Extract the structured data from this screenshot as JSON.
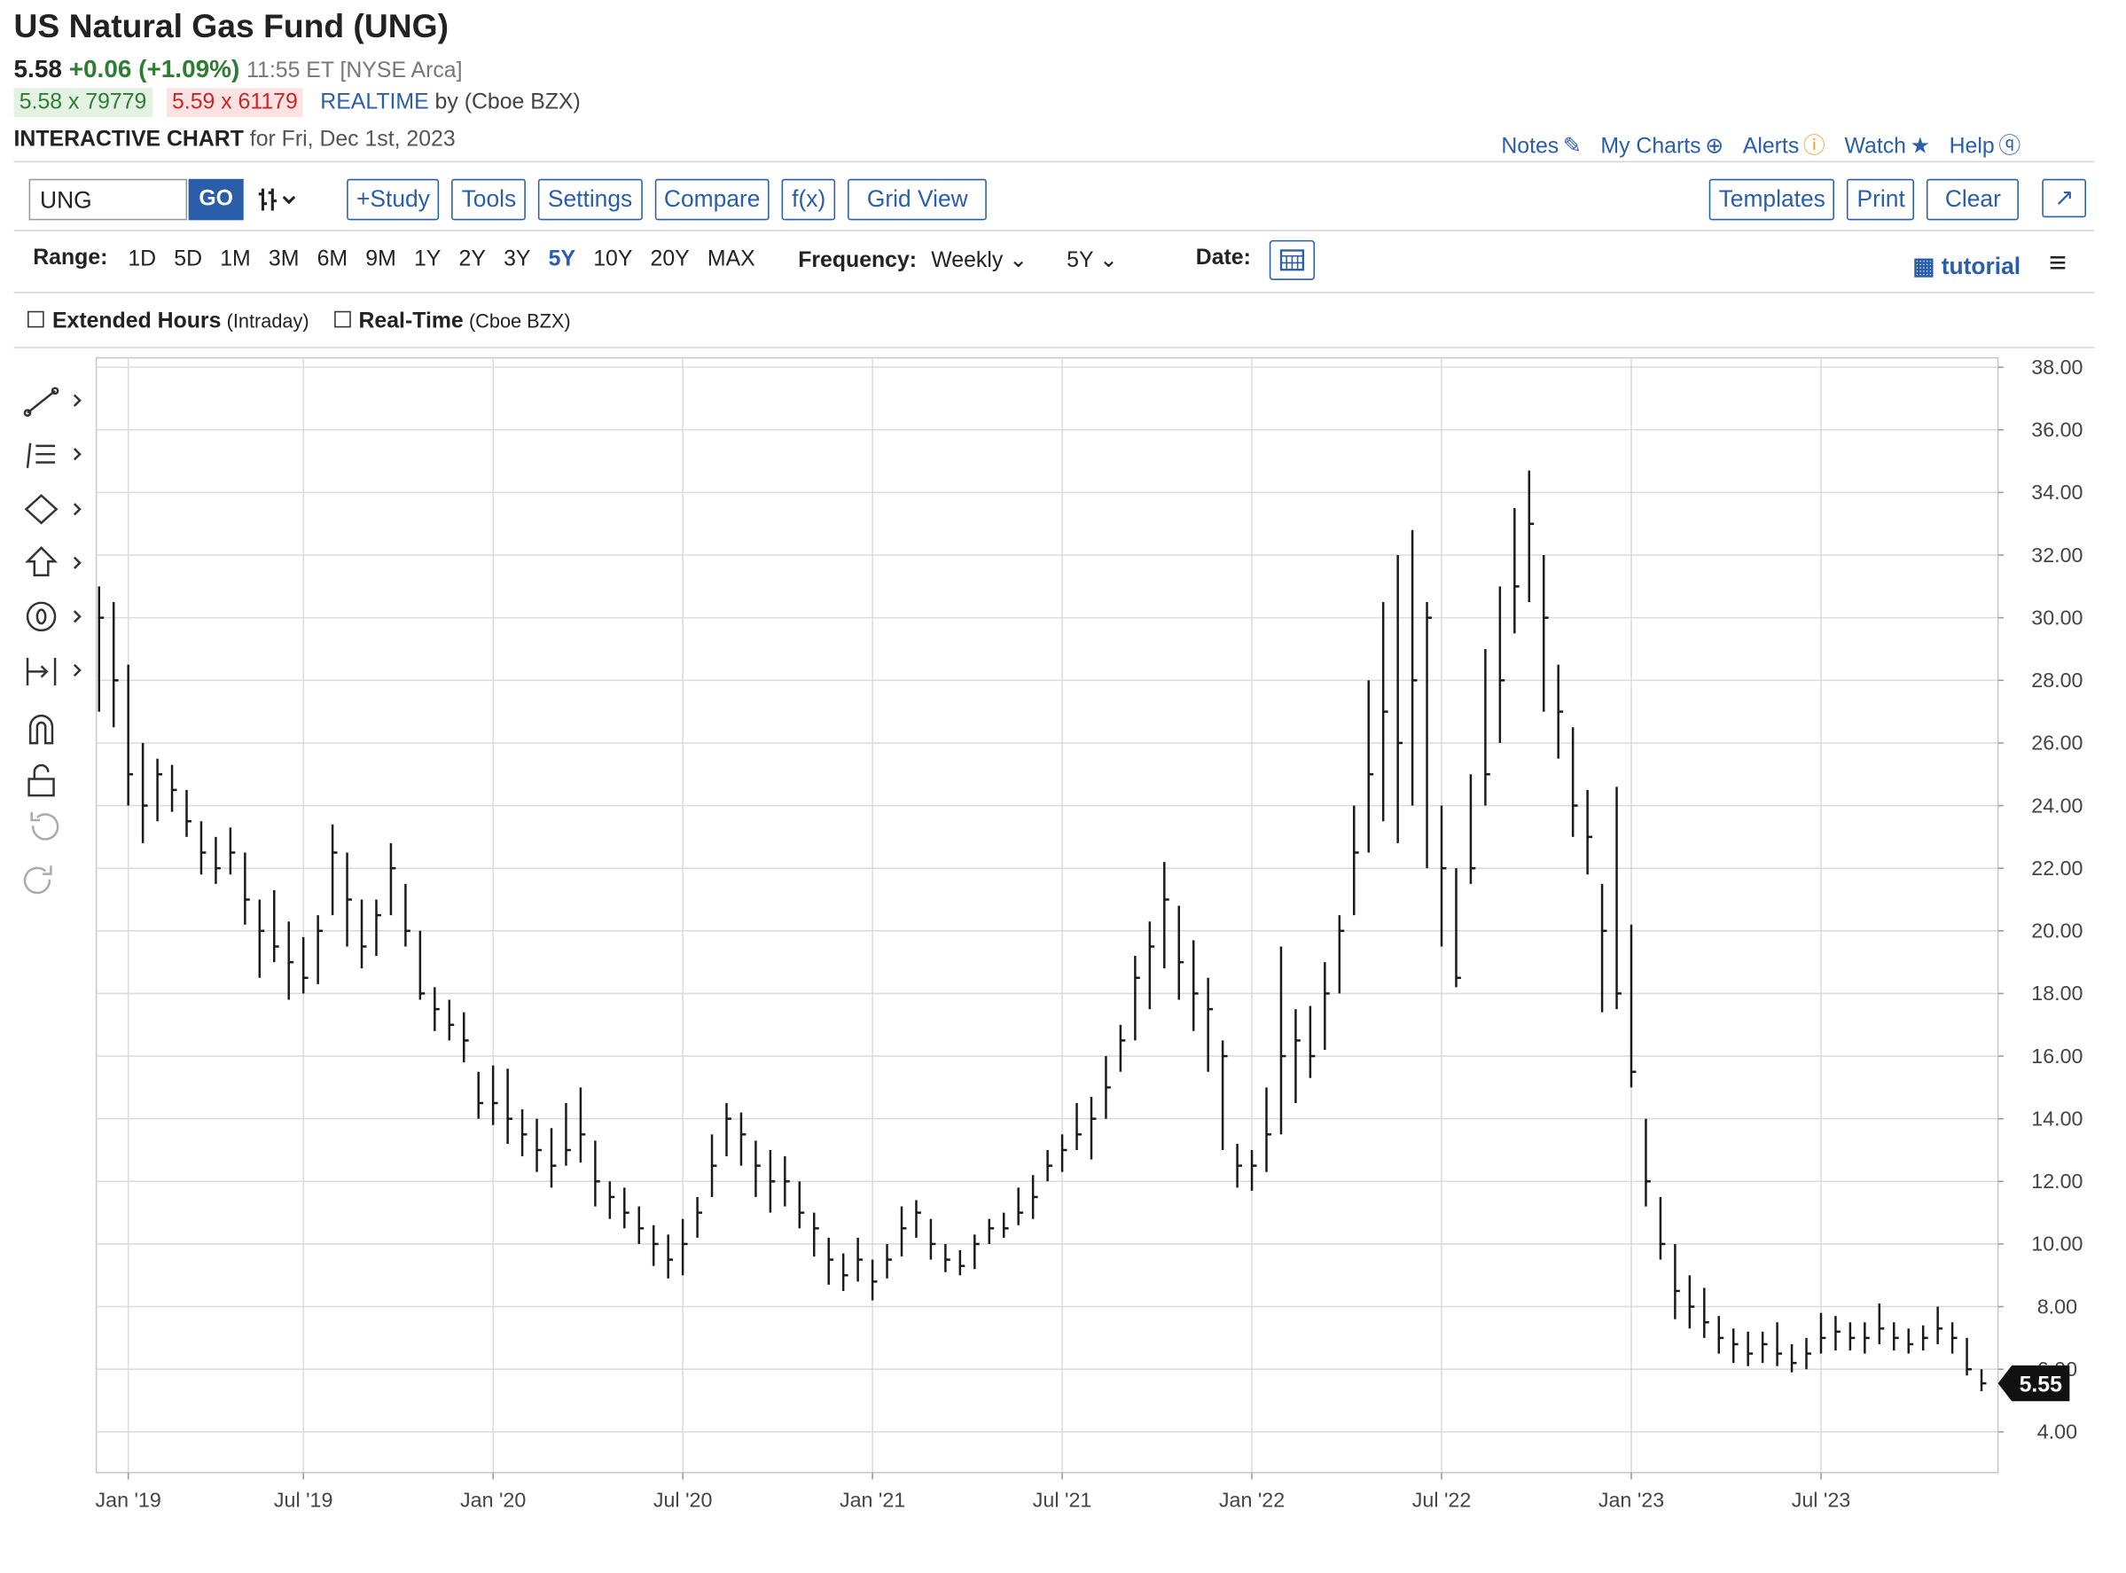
{
  "header": {
    "title": "US Natural Gas Fund (UNG)",
    "last": "5.58",
    "change": "+0.06 (+1.09%)",
    "time": "11:55 ET [NYSE Arca]",
    "bid": "5.58 x 79779",
    "ask": "5.59 x 61179",
    "realtime": "REALTIME",
    "realtime_source": "by (Cboe BZX)",
    "chart_label": "INTERACTIVE CHART",
    "chart_date": "for Fri, Dec 1st, 2023"
  },
  "links": [
    "Notes",
    "My Charts",
    "Alerts",
    "Watch",
    "Help"
  ],
  "toolbar": {
    "symbol": "UNG",
    "go": "GO",
    "buttons": [
      "+Study",
      "Tools",
      "Settings",
      "Compare",
      "f(x)",
      "Grid View"
    ],
    "right_buttons": [
      "Templates",
      "Print",
      "Clear"
    ]
  },
  "range": {
    "label": "Range:",
    "options": [
      "1D",
      "5D",
      "1M",
      "3M",
      "6M",
      "9M",
      "1Y",
      "2Y",
      "3Y",
      "5Y",
      "10Y",
      "20Y",
      "MAX"
    ],
    "selected_index": 9
  },
  "frequency": {
    "label": "Frequency:",
    "value": "Weekly",
    "period": "5Y"
  },
  "date_label": "Date:",
  "tutorial": "tutorial",
  "options": [
    {
      "label": "Extended Hours",
      "note": "(Intraday)"
    },
    {
      "label": "Real-Time",
      "note": "(Cboe BZX)"
    }
  ],
  "chart_data": {
    "type": "hlc",
    "color": "#1a1a1a",
    "grid": true,
    "current_price": 5.55,
    "ylim": [
      2.7,
      38.3
    ],
    "yticks": [
      {
        "value": 4,
        "label": "4.00"
      },
      {
        "value": 6,
        "label": "6.00"
      },
      {
        "value": 8,
        "label": "8.00"
      },
      {
        "value": 10,
        "label": "10.00"
      },
      {
        "value": 12,
        "label": "12.00"
      },
      {
        "value": 14,
        "label": "14.00"
      },
      {
        "value": 16,
        "label": "16.00"
      },
      {
        "value": 18,
        "label": "18.00"
      },
      {
        "value": 20,
        "label": "20.00"
      },
      {
        "value": 22,
        "label": "22.00"
      },
      {
        "value": 24,
        "label": "24.00"
      },
      {
        "value": 26,
        "label": "26.00"
      },
      {
        "value": 28,
        "label": "28.00"
      },
      {
        "value": 30,
        "label": "30.00"
      },
      {
        "value": 32,
        "label": "32.00"
      },
      {
        "value": 34,
        "label": "34.00"
      },
      {
        "value": 36,
        "label": "36.00"
      },
      {
        "value": 38,
        "label": "38.00"
      }
    ],
    "categories": [
      null,
      null,
      "Jan '19",
      null,
      null,
      null,
      null,
      null,
      null,
      null,
      null,
      null,
      null,
      null,
      "Jul '19",
      null,
      null,
      null,
      null,
      null,
      null,
      null,
      null,
      null,
      null,
      null,
      null,
      "Jan '20",
      null,
      null,
      null,
      null,
      null,
      null,
      null,
      null,
      null,
      null,
      null,
      null,
      "Jul '20",
      null,
      null,
      null,
      null,
      null,
      null,
      null,
      null,
      null,
      null,
      null,
      null,
      "Jan '21",
      null,
      null,
      null,
      null,
      null,
      null,
      null,
      null,
      null,
      null,
      null,
      null,
      "Jul '21",
      null,
      null,
      null,
      null,
      null,
      null,
      null,
      null,
      null,
      null,
      null,
      null,
      "Jan '22",
      null,
      null,
      null,
      null,
      null,
      null,
      null,
      null,
      null,
      null,
      null,
      null,
      "Jul '22",
      null,
      null,
      null,
      null,
      null,
      null,
      null,
      null,
      null,
      null,
      null,
      null,
      "Jan '23",
      null,
      null,
      null,
      null,
      null,
      null,
      null,
      null,
      null,
      null,
      null,
      null,
      "Jul '23",
      null,
      null,
      null,
      null,
      null,
      null,
      null,
      null,
      null,
      null,
      null
    ],
    "high": [
      31,
      30.5,
      28.5,
      26,
      25.5,
      25.3,
      24.5,
      23.5,
      23,
      23.3,
      22.5,
      21,
      21.3,
      20.3,
      19.8,
      20.5,
      23.4,
      22.5,
      21,
      21,
      22.8,
      21.5,
      20,
      18.2,
      17.8,
      17.4,
      15.5,
      15.7,
      15.6,
      14.3,
      14,
      13.7,
      14.5,
      15,
      13.3,
      12,
      11.8,
      11.2,
      10.6,
      10.3,
      10.8,
      11.5,
      13.5,
      14.5,
      14.2,
      13.3,
      13,
      12.8,
      12,
      11,
      10.2,
      9.7,
      10.2,
      9.5,
      10,
      11.2,
      11.4,
      10.8,
      10,
      9.8,
      10.3,
      10.8,
      11,
      11.8,
      12.2,
      13,
      13.5,
      14.5,
      14.7,
      16,
      17,
      19.2,
      20.3,
      22.2,
      20.8,
      19.7,
      18.5,
      16.5,
      13.2,
      13,
      15,
      19.5,
      17.5,
      17.6,
      19,
      20.5,
      24,
      28,
      30.5,
      32,
      32.8,
      30.5,
      24,
      22,
      25,
      29,
      31,
      33.5,
      34.7,
      32,
      28.5,
      26.5,
      24.5,
      21.5,
      24.6,
      20.2,
      14,
      11.5,
      10,
      9,
      8.6,
      7.7,
      7.3,
      7.2,
      7.2,
      7.5,
      6.8,
      7,
      7.8,
      7.7,
      7.5,
      7.5,
      8.1,
      7.5,
      7.3,
      7.4,
      8,
      7.5,
      7,
      6
    ],
    "low": [
      27,
      26.5,
      24,
      22.8,
      23.5,
      23.8,
      23,
      21.8,
      21.5,
      21.8,
      20.2,
      18.5,
      19,
      17.8,
      18,
      18.3,
      20.5,
      19.5,
      18.8,
      19.2,
      20.5,
      19.5,
      17.8,
      16.8,
      16.5,
      15.8,
      14,
      13.8,
      13.2,
      12.8,
      12.3,
      11.8,
      12.5,
      12.6,
      11.2,
      10.8,
      10.5,
      10,
      9.3,
      8.9,
      9,
      10.2,
      11.5,
      12.8,
      12.5,
      11.5,
      11,
      11.2,
      10.5,
      9.6,
      8.7,
      8.5,
      8.8,
      8.2,
      8.9,
      9.6,
      10.2,
      9.5,
      9.1,
      9,
      9.2,
      10,
      10.2,
      10.6,
      10.8,
      12,
      12.3,
      13,
      12.7,
      14,
      15.5,
      16.5,
      17.5,
      18.8,
      17.8,
      16.8,
      15.5,
      13,
      11.8,
      11.7,
      12.3,
      13.5,
      14.5,
      15.3,
      16.2,
      18,
      20.5,
      22.5,
      23.5,
      22.8,
      24,
      22,
      19.5,
      18.2,
      21.5,
      24,
      26,
      29.5,
      30.5,
      27,
      25.5,
      23,
      21.8,
      17.4,
      17.5,
      15,
      11.2,
      9.5,
      7.6,
      7.3,
      7,
      6.5,
      6.2,
      6.1,
      6.2,
      6.1,
      5.9,
      6,
      6.5,
      6.6,
      6.6,
      6.5,
      6.8,
      6.6,
      6.5,
      6.6,
      6.8,
      6.5,
      5.8,
      5.3
    ],
    "close": [
      30,
      28,
      25,
      24,
      25,
      24.5,
      23.5,
      22.5,
      22,
      22.5,
      21,
      20,
      19.5,
      19,
      18.5,
      20,
      22.5,
      21,
      19.5,
      20.5,
      22,
      20,
      18,
      17.5,
      17,
      16.5,
      14.5,
      14.5,
      14,
      13.5,
      13,
      12.5,
      13,
      13.5,
      12,
      11.5,
      11,
      10.5,
      10,
      9.5,
      10,
      11,
      12.5,
      14,
      13.5,
      12.5,
      12,
      12,
      11,
      10.5,
      9.5,
      9,
      9.5,
      8.8,
      9.5,
      10.5,
      11,
      10,
      9.5,
      9.3,
      10,
      10.5,
      10.5,
      11,
      11.5,
      12.5,
      13,
      13.5,
      14,
      15,
      16.5,
      18.5,
      19.5,
      21,
      19,
      18,
      17.5,
      16,
      12.5,
      12.5,
      13.5,
      16,
      16.5,
      16,
      18,
      20,
      22.5,
      25,
      27,
      26,
      28,
      30,
      22,
      18.5,
      22,
      25,
      28,
      31,
      33,
      30,
      27,
      24,
      23,
      20,
      18,
      15.5,
      12,
      10,
      8.5,
      8,
      7.5,
      7,
      6.8,
      6.5,
      6.8,
      6.5,
      6.2,
      6.5,
      7,
      7.2,
      7,
      7,
      7.3,
      7,
      6.8,
      7,
      7.3,
      7,
      6,
      5.55
    ]
  }
}
